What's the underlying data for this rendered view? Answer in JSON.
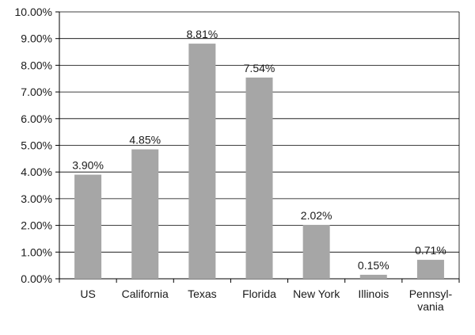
{
  "chart_data": {
    "type": "bar",
    "categories": [
      [
        "US"
      ],
      [
        "California"
      ],
      [
        "Texas"
      ],
      [
        "Florida"
      ],
      [
        "New York"
      ],
      [
        "Illinois"
      ],
      [
        "Pennsyl-",
        "vania"
      ]
    ],
    "values": [
      3.9,
      4.85,
      8.81,
      7.54,
      2.02,
      0.15,
      0.71
    ],
    "data_labels": [
      "3.90%",
      "4.85%",
      "8.81%",
      "7.54%",
      "2.02%",
      "0.15%",
      "0.71%"
    ],
    "y_ticks": [
      0,
      1,
      2,
      3,
      4,
      5,
      6,
      7,
      8,
      9,
      10
    ],
    "y_tick_labels": [
      "0.00%",
      "1.00%",
      "2.00%",
      "3.00%",
      "4.00%",
      "5.00%",
      "6.00%",
      "7.00%",
      "8.00%",
      "9.00%",
      "10.00%"
    ],
    "ylim": [
      0,
      10
    ],
    "grid": true,
    "title": "",
    "xlabel": "",
    "ylabel": "",
    "colors": {
      "bar": "#a6a6a6",
      "axis": "#000000",
      "grid": "#000000",
      "text": "#1a1a1a"
    }
  }
}
